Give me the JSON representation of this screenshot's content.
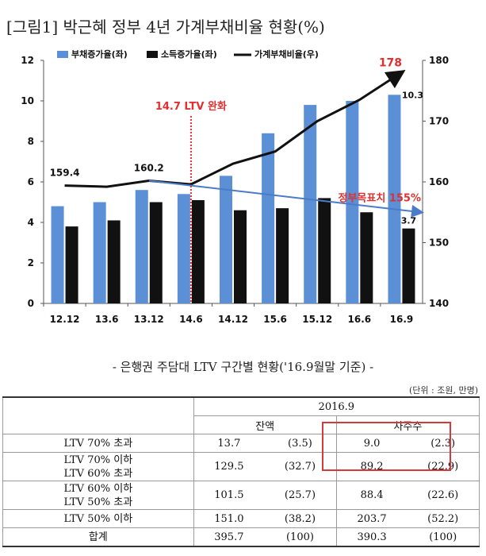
{
  "figure_title": "[그림1] 박근혜 정부 4년 가계부채비율 현황(%)",
  "chart_data": {
    "type": "bar",
    "categories": [
      "12.12",
      "13.6",
      "13.12",
      "14.6",
      "14.12",
      "15.6",
      "15.12",
      "16.6",
      "16.9"
    ],
    "series": [
      {
        "name": "부채증가율(좌)",
        "type": "bar",
        "axis": "left",
        "color": "#5b8fd6",
        "values": [
          4.8,
          5.0,
          5.6,
          5.4,
          6.3,
          8.4,
          9.8,
          10.0,
          10.3
        ]
      },
      {
        "name": "소득증가율(좌)",
        "type": "bar",
        "axis": "left",
        "color": "#111111",
        "values": [
          3.8,
          4.1,
          5.0,
          5.1,
          4.6,
          4.7,
          5.2,
          4.5,
          3.7
        ]
      },
      {
        "name": "가계부채비율(우)",
        "type": "line",
        "axis": "right",
        "color": "#111111",
        "values": [
          159.4,
          159.2,
          160.2,
          159.6,
          163.0,
          165.0,
          170.0,
          173.5,
          178.0
        ]
      }
    ],
    "left_axis": {
      "min": 0,
      "max": 12,
      "ticks": [
        "0",
        "2",
        "4",
        "6",
        "8",
        "10",
        "12"
      ]
    },
    "right_axis": {
      "min": 140,
      "max": 180,
      "ticks": [
        "140",
        "150",
        "160",
        "170",
        "180"
      ]
    },
    "grid": false,
    "legend_position": "top",
    "annotations": {
      "ltv_label": "14.7 LTV 완화",
      "ltv_category": "14.6",
      "target_label": "정부목표치 155%",
      "target_line": {
        "from_category": "13.12",
        "from_value": 160.2,
        "to_value": 155
      },
      "data_labels": [
        {
          "text": "159.4",
          "category": "12.12",
          "series": "가계부채비율(우)"
        },
        {
          "text": "160.2",
          "category": "13.12",
          "series": "가계부채비율(우)"
        },
        {
          "text": "178",
          "category": "16.9",
          "series": "가계부채비율(우)",
          "color": "#e03030"
        },
        {
          "text": "10.3",
          "category": "16.9",
          "series": "부채증가율(좌)"
        },
        {
          "text": "3.7",
          "category": "16.9",
          "series": "소득증가율(좌)"
        }
      ]
    }
  },
  "ltv_table": {
    "title": "- 은행권 주담대 LTV 구간별 현황('16.9월말 기준) -",
    "unit_note": "(단위 : 조원, 만명)",
    "period": "2016.9",
    "col_balance": "잔액",
    "col_borrowers": "차주수",
    "rows": [
      {
        "label_lines": [
          "LTV 70% 초과"
        ],
        "balance": "13.7",
        "balance_pct": "(3.5)",
        "borrowers": "9.0",
        "borrowers_pct": "(2.3)"
      },
      {
        "label_lines": [
          "LTV 70% 이하",
          "LTV 60% 초과"
        ],
        "balance": "129.5",
        "balance_pct": "(32.7)",
        "borrowers": "89.2",
        "borrowers_pct": "(22.9)"
      },
      {
        "label_lines": [
          "LTV 60% 이하",
          "LTV 50% 초과"
        ],
        "balance": "101.5",
        "balance_pct": "(25.7)",
        "borrowers": "88.4",
        "borrowers_pct": "(22.6)"
      },
      {
        "label_lines": [
          "LTV 50% 이하"
        ],
        "balance": "151.0",
        "balance_pct": "(38.2)",
        "borrowers": "203.7",
        "borrowers_pct": "(52.2)"
      },
      {
        "label_lines": [
          "합계"
        ],
        "balance": "395.7",
        "balance_pct": "(100)",
        "borrowers": "390.3",
        "borrowers_pct": "(100)"
      }
    ],
    "highlight_color": "#d33a3a"
  }
}
